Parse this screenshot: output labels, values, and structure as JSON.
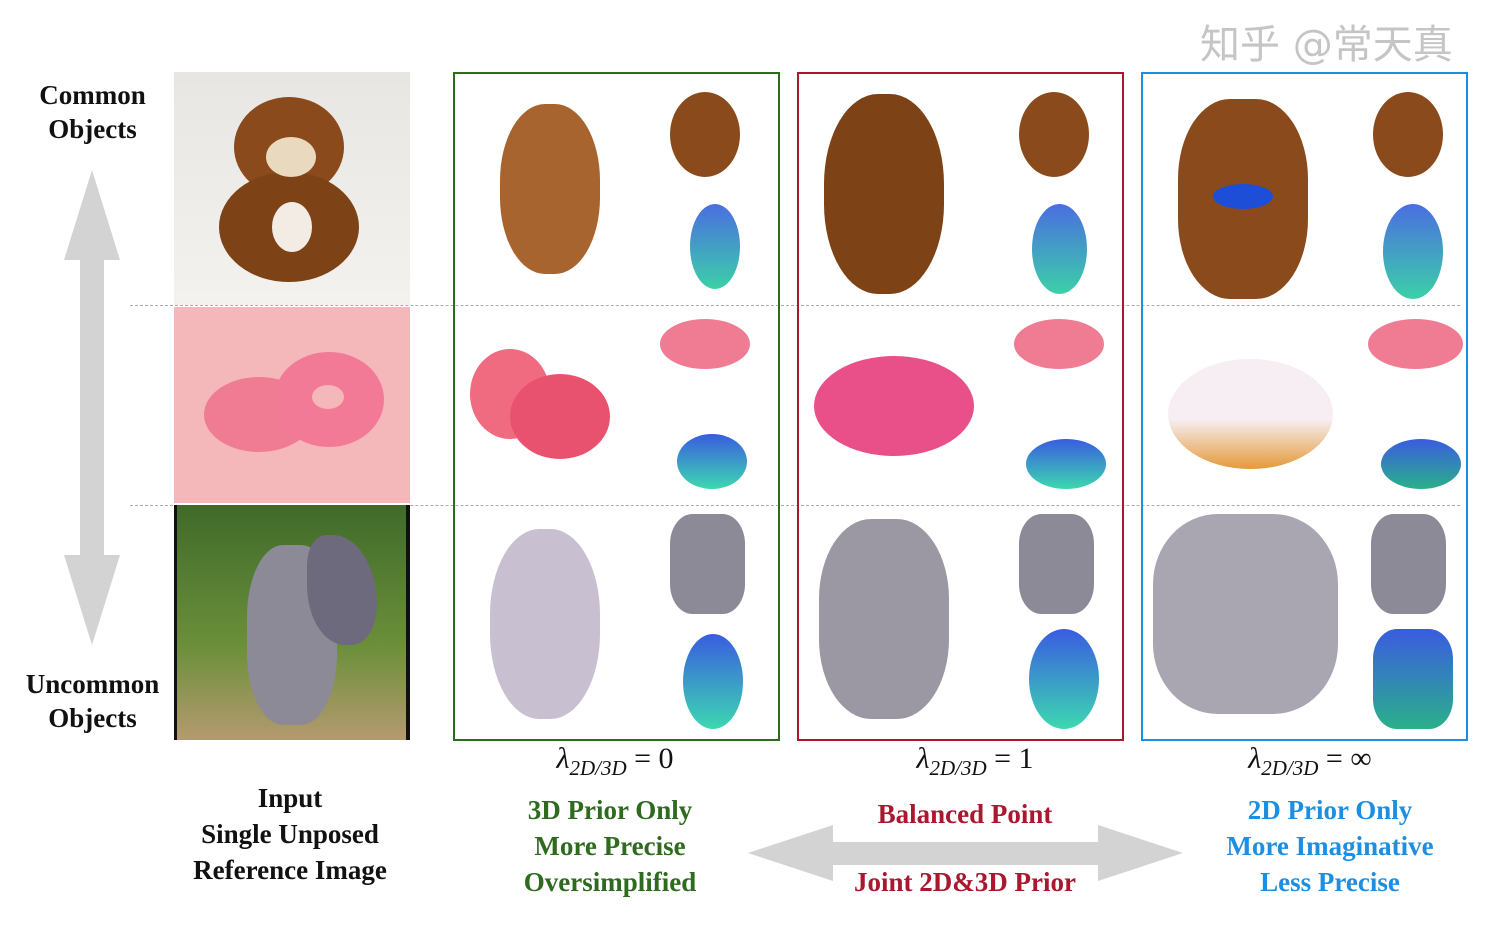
{
  "row_labels": {
    "top": "Common Objects",
    "bottom": "Uncommon Objects"
  },
  "input_caption": [
    "Input",
    "Single Unposed",
    "Reference Image"
  ],
  "columns": [
    {
      "lambda_value": "0",
      "color": "#2e6b1f",
      "captions": [
        "3D Prior Only",
        "More Precise",
        "Oversimplified"
      ]
    },
    {
      "lambda_value": "1",
      "color": "#a8182e",
      "captions": [
        "Balanced Point",
        "Joint 2D&3D Prior"
      ]
    },
    {
      "lambda_value": "∞",
      "color": "#1e8fe0",
      "captions": [
        "2D Prior Only",
        "More Imaginative",
        "Less Precise"
      ]
    }
  ],
  "lambda_symbol": "λ",
  "lambda_subscript": "2D/3D",
  "equals": "=",
  "rows": [
    "teddy bear",
    "donuts",
    "dragon statue"
  ],
  "watermark": "知乎 @常天真",
  "colors": {
    "arrow": "#d3d3d3",
    "dash": "#aaaaaa"
  }
}
